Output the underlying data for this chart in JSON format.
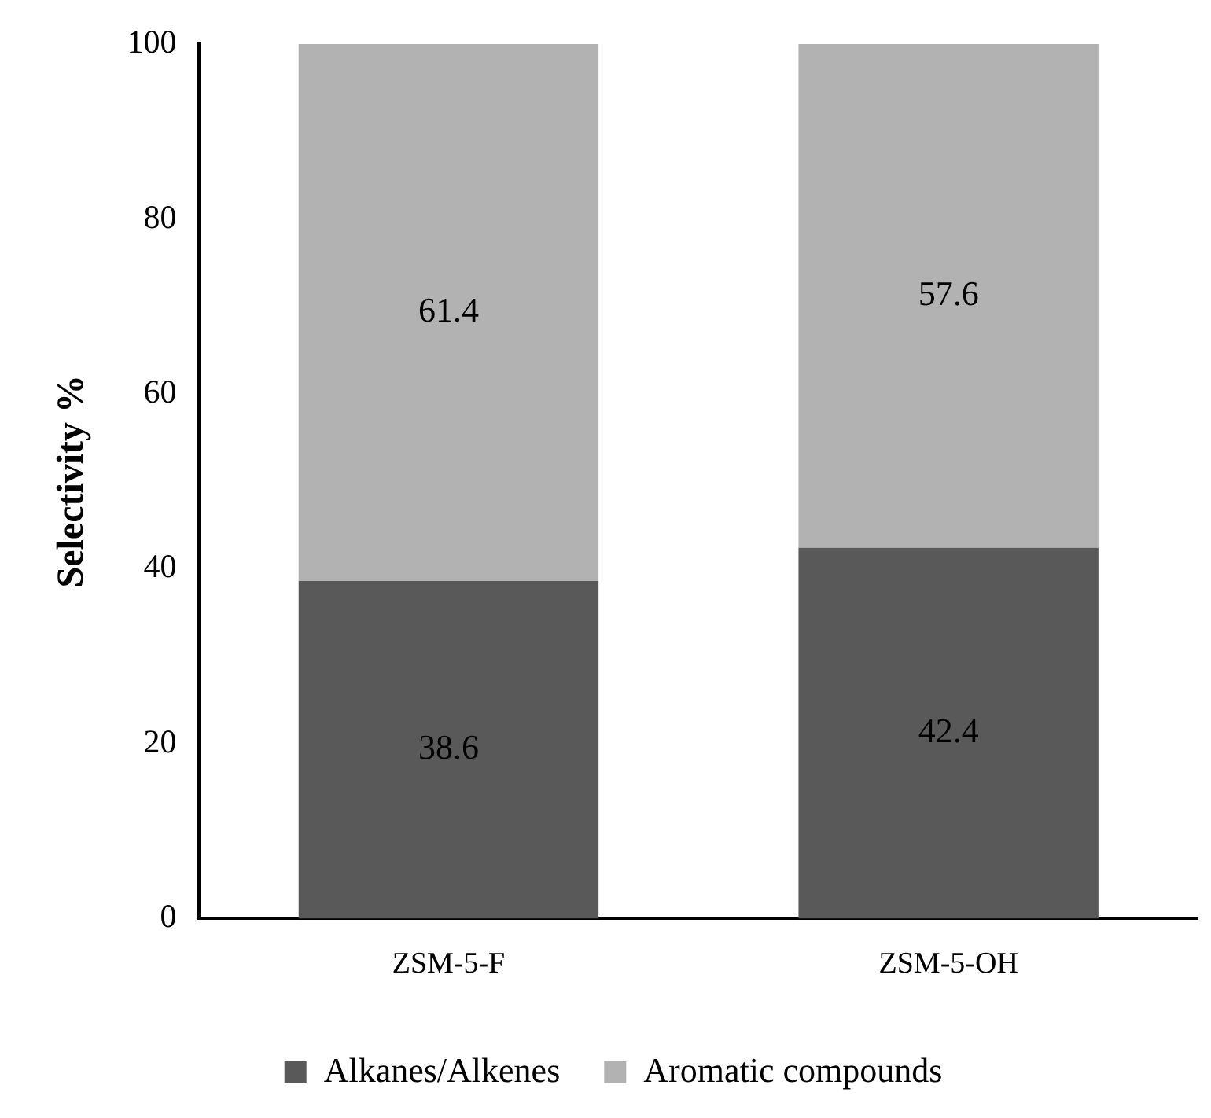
{
  "chart_data": {
    "type": "bar",
    "ylabel": "Selectivity %",
    "categories": [
      "ZSM-5-F",
      "ZSM-5-OH"
    ],
    "stacked": true,
    "series": [
      {
        "name": "Alkanes/Alkenes",
        "color": "#595959",
        "values": [
          38.6,
          42.4
        ]
      },
      {
        "name": "Aromatic compounds",
        "color": "#b2b2b2",
        "values": [
          61.4,
          57.6
        ]
      }
    ],
    "ylim": [
      0,
      100
    ],
    "yticks": [
      0,
      20,
      40,
      60,
      80,
      100
    ],
    "grid": false,
    "legend": "bottom",
    "data_labels": true
  }
}
